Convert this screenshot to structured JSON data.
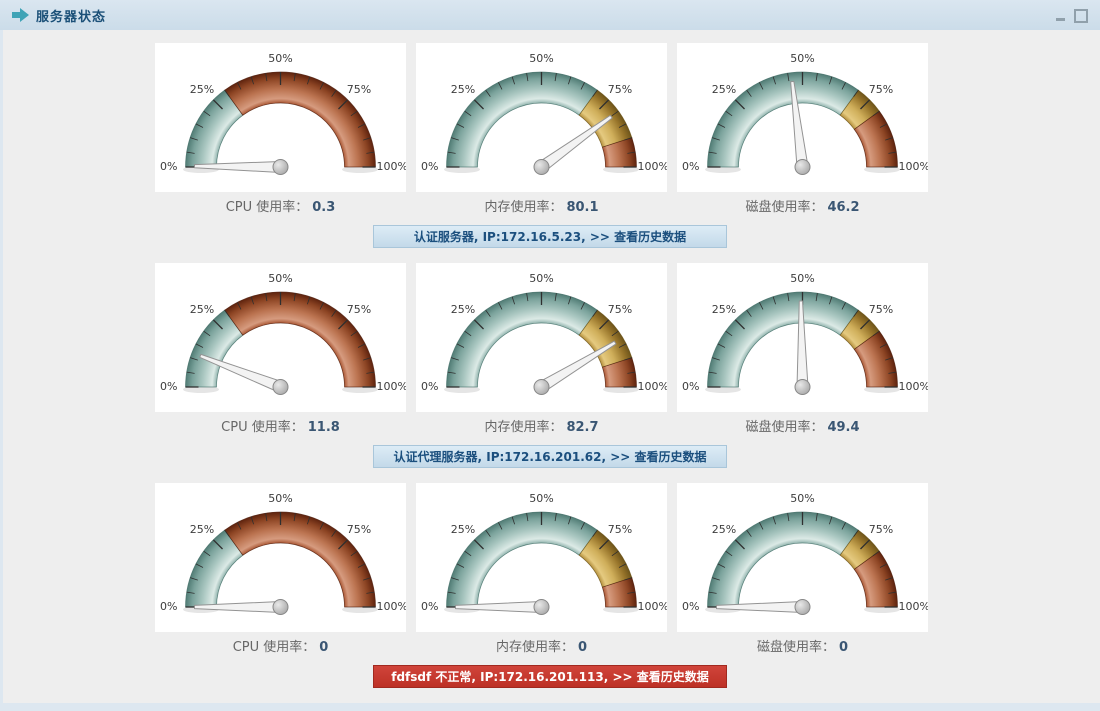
{
  "titlebar": {
    "title": "服务器状态"
  },
  "gauge": {
    "tick_labels": [
      "0%",
      "25%",
      "50%",
      "75%",
      "100%"
    ],
    "band_colors": {
      "teal": {
        "stops": [
          [
            "0.672",
            "#8fb2ac"
          ],
          [
            "0.72",
            "#dceae6"
          ],
          [
            "0.82",
            "#aac7c1"
          ],
          [
            "0.93",
            "#7aa29b"
          ],
          [
            "1",
            "#517c75"
          ]
        ],
        "stroke": "#3f6b64"
      },
      "gold": {
        "stops": [
          [
            "0.672",
            "#b28d3a"
          ],
          [
            "0.72",
            "#e5ca80"
          ],
          [
            "0.82",
            "#cfae5a"
          ],
          [
            "0.93",
            "#97742a"
          ],
          [
            "1",
            "#6d541a"
          ]
        ],
        "stroke": "#6a5317"
      },
      "red": {
        "stops": [
          [
            "0.672",
            "#a85431"
          ],
          [
            "0.72",
            "#d69b7f"
          ],
          [
            "0.82",
            "#bb7350"
          ],
          [
            "0.93",
            "#8c4423"
          ],
          [
            "1",
            "#5e230e"
          ]
        ],
        "stroke": "#4d1c0a"
      }
    },
    "needle_color": "#f3f3f3",
    "tick_color": "#2f2f2f"
  },
  "servers": [
    {
      "banner": "认证服务器, IP:172.16.5.23, >> 查看历史数据",
      "status": "normal",
      "metrics": [
        {
          "label": "CPU 使用率：",
          "value": "0.3",
          "numeric": 0.3,
          "bands": [
            {
              "from": 0,
              "to": 30,
              "color": "teal"
            },
            {
              "from": 30,
              "to": 100,
              "color": "red"
            }
          ]
        },
        {
          "label": "内存使用率：",
          "value": "80.1",
          "numeric": 80.1,
          "bands": [
            {
              "from": 0,
              "to": 70,
              "color": "teal"
            },
            {
              "from": 70,
              "to": 90,
              "color": "gold"
            },
            {
              "from": 90,
              "to": 100,
              "color": "red"
            }
          ]
        },
        {
          "label": "磁盘使用率：",
          "value": "46.2",
          "numeric": 46.2,
          "bands": [
            {
              "from": 0,
              "to": 70,
              "color": "teal"
            },
            {
              "from": 70,
              "to": 80,
              "color": "gold"
            },
            {
              "from": 80,
              "to": 100,
              "color": "red"
            }
          ]
        }
      ]
    },
    {
      "banner": "认证代理服务器, IP:172.16.201.62, >> 查看历史数据",
      "status": "normal",
      "metrics": [
        {
          "label": "CPU 使用率：",
          "value": "11.8",
          "numeric": 11.8,
          "bands": [
            {
              "from": 0,
              "to": 30,
              "color": "teal"
            },
            {
              "from": 30,
              "to": 100,
              "color": "red"
            }
          ]
        },
        {
          "label": "内存使用率：",
          "value": "82.7",
          "numeric": 82.7,
          "bands": [
            {
              "from": 0,
              "to": 70,
              "color": "teal"
            },
            {
              "from": 70,
              "to": 90,
              "color": "gold"
            },
            {
              "from": 90,
              "to": 100,
              "color": "red"
            }
          ]
        },
        {
          "label": "磁盘使用率：",
          "value": "49.4",
          "numeric": 49.4,
          "bands": [
            {
              "from": 0,
              "to": 70,
              "color": "teal"
            },
            {
              "from": 70,
              "to": 80,
              "color": "gold"
            },
            {
              "from": 80,
              "to": 100,
              "color": "red"
            }
          ]
        }
      ]
    },
    {
      "banner": "fdfsdf 不正常, IP:172.16.201.113, >> 查看历史数据",
      "status": "alert",
      "metrics": [
        {
          "label": "CPU 使用率：",
          "value": "0",
          "numeric": 0,
          "bands": [
            {
              "from": 0,
              "to": 30,
              "color": "teal"
            },
            {
              "from": 30,
              "to": 100,
              "color": "red"
            }
          ]
        },
        {
          "label": "内存使用率：",
          "value": "0",
          "numeric": 0,
          "bands": [
            {
              "from": 0,
              "to": 70,
              "color": "teal"
            },
            {
              "from": 70,
              "to": 90,
              "color": "gold"
            },
            {
              "from": 90,
              "to": 100,
              "color": "red"
            }
          ]
        },
        {
          "label": "磁盘使用率：",
          "value": "0",
          "numeric": 0,
          "bands": [
            {
              "from": 0,
              "to": 70,
              "color": "teal"
            },
            {
              "from": 70,
              "to": 80,
              "color": "gold"
            },
            {
              "from": 80,
              "to": 100,
              "color": "red"
            }
          ]
        }
      ]
    }
  ],
  "chart_data": {
    "type": "gauge",
    "unit": "percent",
    "axis": {
      "min": 0,
      "max": 100,
      "major_ticks": [
        "0%",
        "25%",
        "50%",
        "75%",
        "100%"
      ],
      "minor_tick_step": 5
    },
    "thresholds": {
      "CPU 使用率": [
        [
          0,
          30,
          "teal"
        ],
        [
          30,
          100,
          "red"
        ]
      ],
      "内存使用率": [
        [
          0,
          70,
          "teal"
        ],
        [
          70,
          90,
          "gold"
        ],
        [
          90,
          100,
          "red"
        ]
      ],
      "磁盘使用率": [
        [
          0,
          70,
          "teal"
        ],
        [
          70,
          80,
          "gold"
        ],
        [
          80,
          100,
          "red"
        ]
      ]
    },
    "gauges": [
      {
        "server": "认证服务器",
        "ip": "172.16.5.23",
        "metric": "CPU 使用率",
        "value": 0.3
      },
      {
        "server": "认证服务器",
        "ip": "172.16.5.23",
        "metric": "内存使用率",
        "value": 80.1
      },
      {
        "server": "认证服务器",
        "ip": "172.16.5.23",
        "metric": "磁盘使用率",
        "value": 46.2
      },
      {
        "server": "认证代理服务器",
        "ip": "172.16.201.62",
        "metric": "CPU 使用率",
        "value": 11.8
      },
      {
        "server": "认证代理服务器",
        "ip": "172.16.201.62",
        "metric": "内存使用率",
        "value": 82.7
      },
      {
        "server": "认证代理服务器",
        "ip": "172.16.201.62",
        "metric": "磁盘使用率",
        "value": 49.4
      },
      {
        "server": "fdfsdf",
        "status": "不正常",
        "ip": "172.16.201.113",
        "metric": "CPU 使用率",
        "value": 0
      },
      {
        "server": "fdfsdf",
        "status": "不正常",
        "ip": "172.16.201.113",
        "metric": "内存使用率",
        "value": 0
      },
      {
        "server": "fdfsdf",
        "status": "不正常",
        "ip": "172.16.201.113",
        "metric": "磁盘使用率",
        "value": 0
      }
    ]
  }
}
